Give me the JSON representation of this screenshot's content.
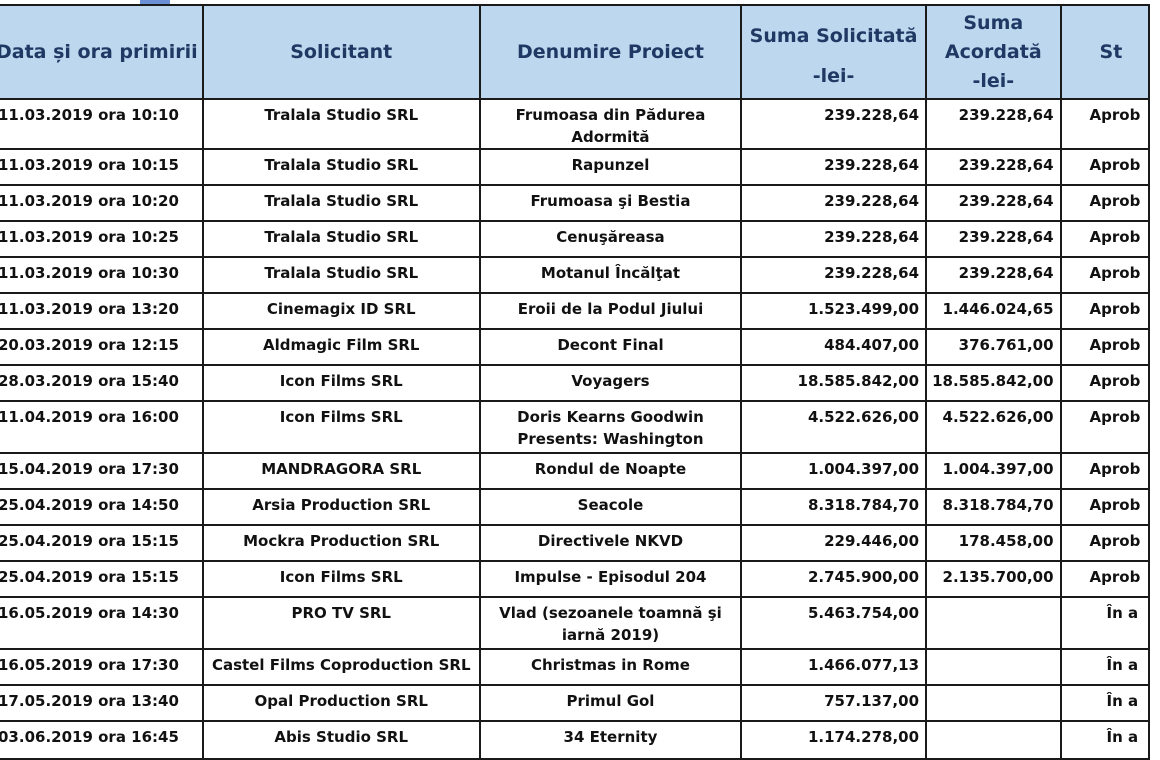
{
  "headers": {
    "date": "Data și ora primirii",
    "applicant": "Solicitant",
    "project": "Denumire Proiect",
    "requested": "Suma Solicitată",
    "requested_unit": "-lei-",
    "granted": "Suma Acordată",
    "granted_unit": "-lei-",
    "status": "St"
  },
  "rows": [
    {
      "date": "11.03.2019 ora 10:10",
      "applicant": "Tralala Studio SRL",
      "project": "Frumoasa din Pădurea Adormită",
      "requested": "239.228,64",
      "granted": "239.228,64",
      "status": "Aprob"
    },
    {
      "date": "11.03.2019 ora 10:15",
      "applicant": "Tralala Studio SRL",
      "project": "Rapunzel",
      "requested": "239.228,64",
      "granted": "239.228,64",
      "status": "Aprob"
    },
    {
      "date": "11.03.2019 ora 10:20",
      "applicant": "Tralala Studio SRL",
      "project": "Frumoasa şi Bestia",
      "requested": "239.228,64",
      "granted": "239.228,64",
      "status": "Aprob"
    },
    {
      "date": "11.03.2019 ora 10:25",
      "applicant": "Tralala Studio SRL",
      "project": "Cenuşăreasa",
      "requested": "239.228,64",
      "granted": "239.228,64",
      "status": "Aprob"
    },
    {
      "date": "11.03.2019 ora 10:30",
      "applicant": "Tralala Studio SRL",
      "project": "Motanul Încălţat",
      "requested": "239.228,64",
      "granted": "239.228,64",
      "status": "Aprob"
    },
    {
      "date": "11.03.2019 ora 13:20",
      "applicant": "Cinemagix ID SRL",
      "project": "Eroii de la Podul Jiului",
      "requested": "1.523.499,00",
      "granted": "1.446.024,65",
      "status": "Aprob"
    },
    {
      "date": "20.03.2019 ora 12:15",
      "applicant": "Aldmagic Film SRL",
      "project": "Decont Final",
      "requested": "484.407,00",
      "granted": "376.761,00",
      "status": "Aprob"
    },
    {
      "date": "28.03.2019 ora 15:40",
      "applicant": "Icon Films SRL",
      "project": "Voyagers",
      "requested": "18.585.842,00",
      "granted": "18.585.842,00",
      "status": "Aprob"
    },
    {
      "date": "11.04.2019 ora 16:00",
      "applicant": "Icon Films SRL",
      "project": "Doris Kearns Goodwin Presents: Washington",
      "requested": "4.522.626,00",
      "granted": "4.522.626,00",
      "status": "Aprob"
    },
    {
      "date": "15.04.2019 ora 17:30",
      "applicant": "MANDRAGORA SRL",
      "project": "Rondul de Noapte",
      "requested": "1.004.397,00",
      "granted": "1.004.397,00",
      "status": "Aprob"
    },
    {
      "date": "25.04.2019 ora 14:50",
      "applicant": "Arsia Production SRL",
      "project": "Seacole",
      "requested": "8.318.784,70",
      "granted": "8.318.784,70",
      "status": "Aprob"
    },
    {
      "date": "25.04.2019 ora 15:15",
      "applicant": "Mockra Production SRL",
      "project": "Directivele NKVD",
      "requested": "229.446,00",
      "granted": "178.458,00",
      "status": "Aprob"
    },
    {
      "date": "25.04.2019 ora 15:15",
      "applicant": "Icon Films SRL",
      "project": "Impulse - Episodul 204",
      "requested": "2.745.900,00",
      "granted": "2.135.700,00",
      "status": "Aprob"
    },
    {
      "date": "16.05.2019  ora 14:30",
      "applicant": "PRO TV SRL",
      "project": "Vlad (sezoanele toamnă şi iarnă 2019)",
      "requested": "5.463.754,00",
      "granted": "",
      "status": "În a"
    },
    {
      "date": "16.05.2019 ora 17:30",
      "applicant": "Castel Films Coproduction SRL",
      "project": "Christmas in Rome",
      "requested": "1.466.077,13",
      "granted": "",
      "status": "În a"
    },
    {
      "date": "17.05.2019  ora 13:40",
      "applicant": "Opal Production SRL",
      "project": "Primul Gol",
      "requested": "757.137,00",
      "granted": "",
      "status": "În a"
    },
    {
      "date": "03.06.2019 ora 16:45",
      "applicant": "Abis Studio SRL",
      "project": "34 Eternity",
      "requested": "1.174.278,00",
      "granted": "",
      "status": "În a"
    }
  ]
}
